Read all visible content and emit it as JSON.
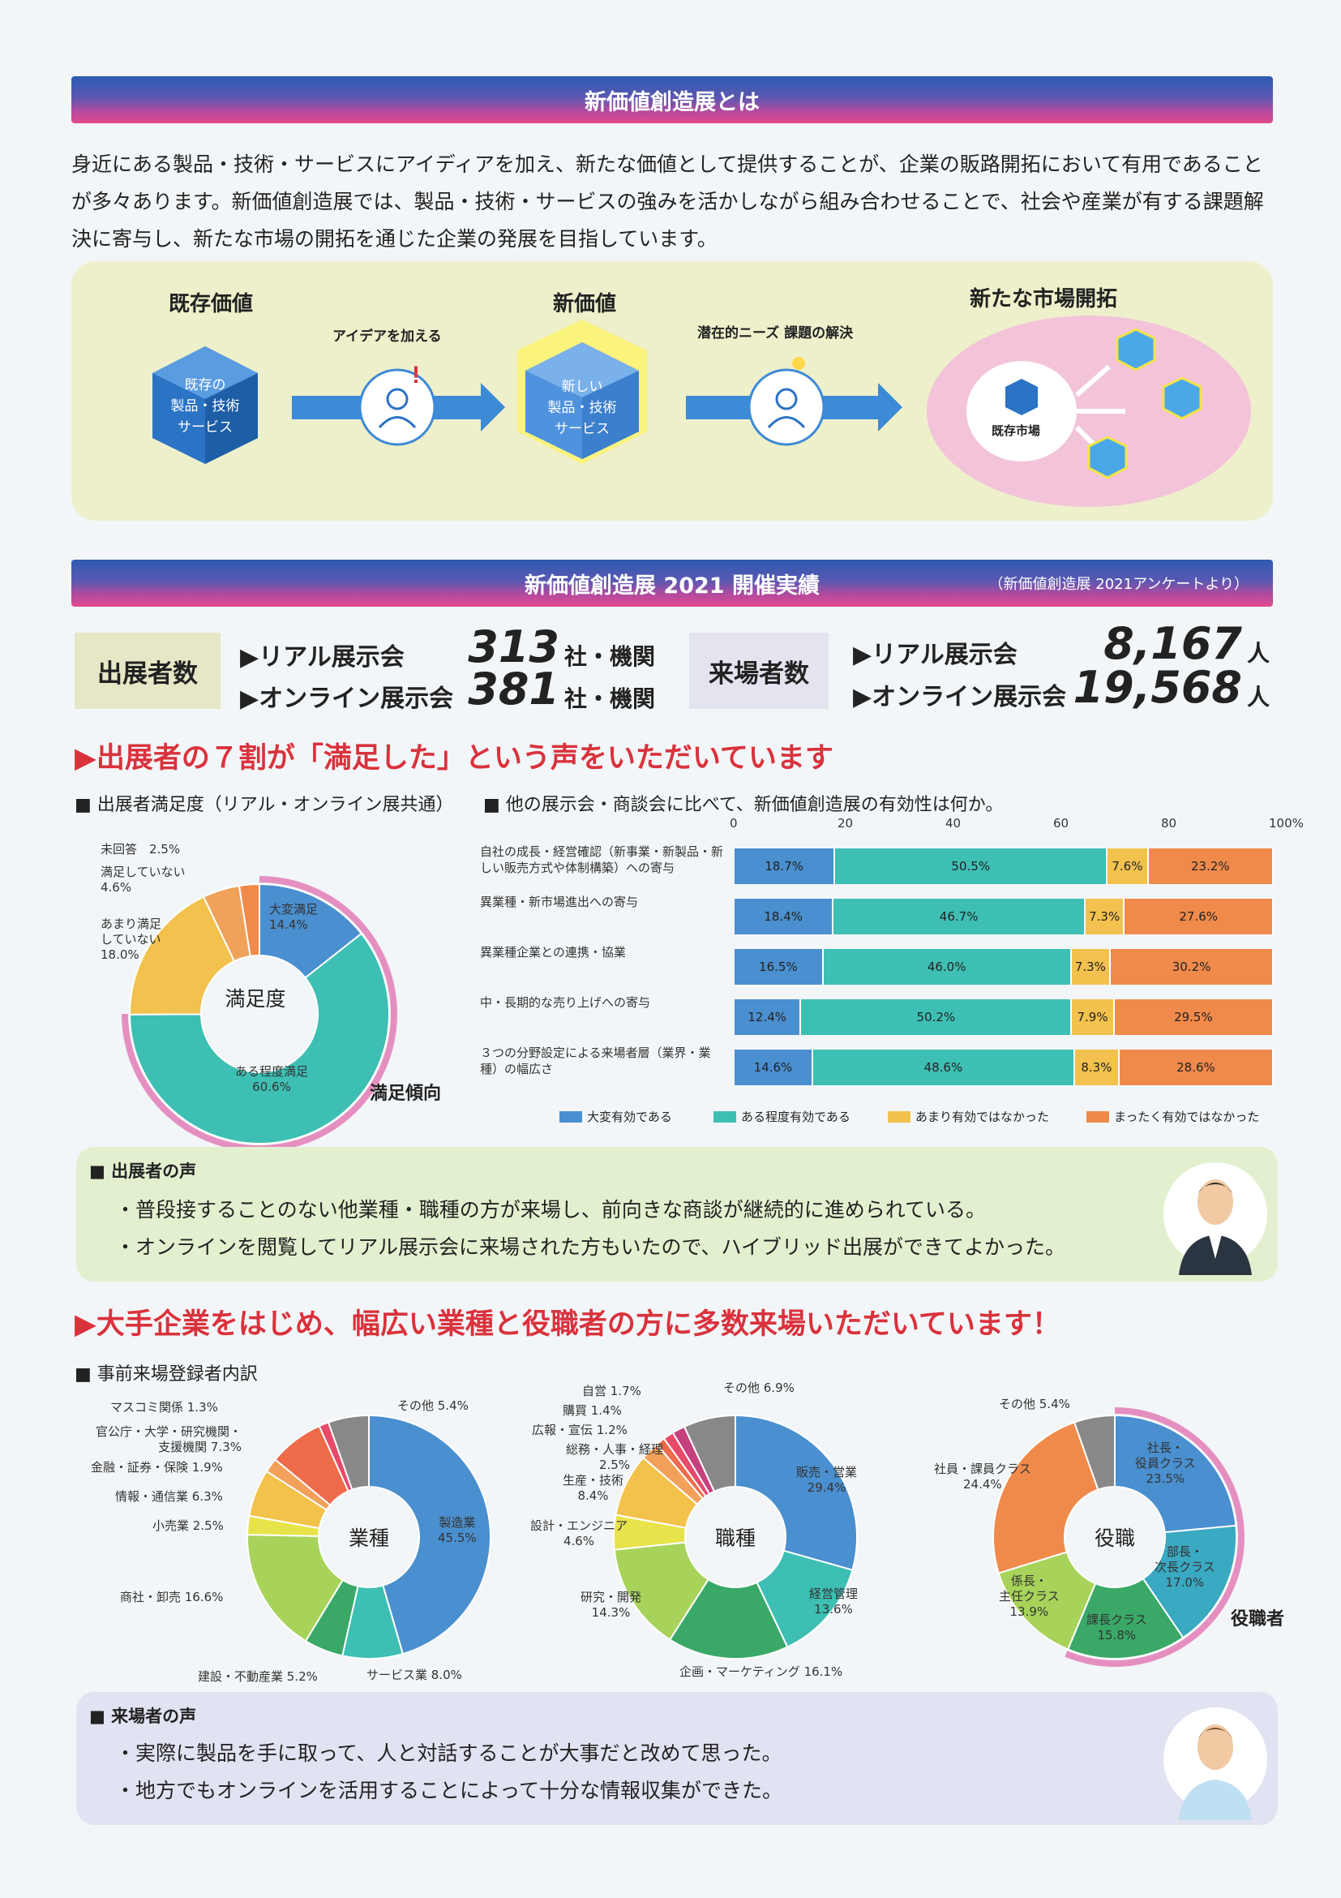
{
  "section1": {
    "title": "新価値創造展とは",
    "intro": "身近にある製品・技術・サービスにアイディアを加え、新たな価値として提供することが、企業の販路開拓において有用であることが多々あります。新価値創造展では、製品・技術・サービスの強みを活かしながら組み合わせることで、社会や産業が有する課題解決に寄与し、新たな市場の開拓を通じた企業の発展を目指しています。",
    "flow": {
      "existing_title": "既存価値",
      "existing_cube": [
        "既存の",
        "製品・技術",
        "サービス"
      ],
      "step1": "アイデアを加える",
      "new_title": "新価値",
      "new_cube": [
        "新しい",
        "製品・技術",
        "サービス"
      ],
      "step2": "潜在的ニーズ 課題の解決",
      "market_title": "新たな市場開拓",
      "market_label": "既存市場"
    }
  },
  "section2": {
    "title": "新価値創造展 2021 開催実績",
    "note": "（新価値創造展 2021アンケートより）",
    "exhibitors": {
      "label": "出展者数",
      "real_label": "▶リアル展示会",
      "real_value": "313",
      "online_label": "▶オンライン展示会",
      "online_value": "381",
      "unit": "社・機関"
    },
    "visitors": {
      "label": "来場者数",
      "real_label": "▶リアル展示会",
      "real_value": "8,167",
      "online_label": "▶オンライン展示会",
      "online_value": "19,568",
      "unit": "人"
    }
  },
  "headline1": "▶出展者の７割が「満足した」という声をいただいています",
  "pie_title": "■ 出展者満足度（リアル・オンライン展共通）",
  "bar_title": "■ 他の展示会・商談会に比べて、新価値創造展の有効性は何か。",
  "satisfaction_center": "満足度",
  "satisfaction_arc_label": "満足傾向",
  "exhibitor_voice": {
    "title": "■ 出展者の声",
    "lines": [
      "・普段接することのない他業種・職種の方が来場し、前向きな商談が継続的に進められている。",
      "・オンラインを閲覧してリアル展示会に来場された方もいたので、ハイブリッド出展ができてよかった。"
    ]
  },
  "headline2": "▶大手企業をはじめ、幅広い業種と役職者の方に多数来場いただいています！",
  "registrants_title": "■ 事前来場登録者内訳",
  "donut_centers": [
    "業種",
    "職種",
    "役職"
  ],
  "role_arc_label": "役職者",
  "visitor_voice": {
    "title": "■ 来場者の声",
    "lines": [
      "・実際に製品を手に取って、人と対話することが大事だと改めて思った。",
      "・地方でもオンラインを活用することによって十分な情報収集ができた。"
    ]
  },
  "colors": {
    "blue": "#4a8fcf",
    "teal": "#3dbfb4",
    "yellow": "#f2c14e",
    "orange": "#f08a4b",
    "pink_arc": "#e58fc1"
  },
  "chart_data": [
    {
      "type": "pie",
      "title": "出展者満足度（リアル・オンライン展共通）",
      "categories": [
        "大変満足",
        "ある程度満足",
        "あまり満足していない",
        "満足していない",
        "未回答"
      ],
      "values": [
        14.4,
        60.6,
        18.0,
        4.6,
        2.5
      ],
      "label_texts": [
        "大変満足\n14.4%",
        "ある程度満足\n60.6%",
        "あまり満足\nしていない\n18.0%",
        "満足していない\n4.6%",
        "未回答　2.5%"
      ],
      "colors": [
        "#4a8fcf",
        "#3dbfb4",
        "#f2c14e",
        "#f0a25a",
        "#f08a4b"
      ]
    },
    {
      "type": "bar",
      "title": "他の展示会・商談会に比べて、新価値創造展の有効性は何か。",
      "orientation": "horizontal-stacked",
      "categories": [
        "自社の成長・経営確認（新事業・新製品・新しい販売方式や体制構築）への寄与",
        "異業種・新市場進出への寄与",
        "異業種企業との連携・協業",
        "中・長期的な売り上げへの寄与",
        "３つの分野設定による来場者層（業界・業種）の幅広さ"
      ],
      "series": [
        {
          "name": "大変有効である",
          "values": [
            18.7,
            18.4,
            16.5,
            12.4,
            14.6
          ]
        },
        {
          "name": "ある程度有効である",
          "values": [
            50.5,
            46.7,
            46.0,
            50.2,
            48.6
          ]
        },
        {
          "name": "あまり有効ではなかった",
          "values": [
            7.6,
            7.3,
            7.3,
            7.9,
            8.3
          ]
        },
        {
          "name": "まったく有効ではなかった",
          "values": [
            23.2,
            27.6,
            30.2,
            29.5,
            28.6
          ]
        }
      ],
      "xlim": [
        0,
        100
      ],
      "ticks": [
        "0",
        "20",
        "40",
        "60",
        "80",
        "100%"
      ]
    },
    {
      "type": "pie",
      "title": "業種",
      "categories": [
        "製造業",
        "サービス業",
        "建設・不動産業",
        "商社・卸売",
        "小売業",
        "情報・通信業",
        "金融・証券・保険",
        "官公庁・大学・研究機関・支援機関",
        "マスコミ関係",
        "その他"
      ],
      "values": [
        45.5,
        8.0,
        5.2,
        16.6,
        2.5,
        6.3,
        1.9,
        7.3,
        1.3,
        5.4
      ],
      "label_texts": [
        "製造業\n45.5%",
        "サービス業 8.0%",
        "建設・不動産業 5.2%",
        "商社・卸売 16.6%",
        "小売業 2.5%",
        "情報・通信業 6.3%",
        "金融・証券・保険 1.9%",
        "官公庁・大学・研究機関・\n支援機関 7.3%",
        "マスコミ関係 1.3%",
        "その他 5.4%"
      ]
    },
    {
      "type": "pie",
      "title": "職種",
      "categories": [
        "販売・営業",
        "経営管理",
        "企画・マーケティング",
        "研究・開発",
        "設計・エンジニア",
        "生産・技術",
        "総務・人事・経理",
        "広報・宣伝",
        "購買",
        "自営",
        "その他"
      ],
      "values": [
        29.4,
        13.6,
        16.1,
        14.3,
        4.6,
        8.4,
        2.5,
        1.2,
        1.4,
        1.7,
        6.9
      ],
      "label_texts": [
        "販売・営業\n29.4%",
        "経営管理\n13.6%",
        "企画・マーケティング 16.1%",
        "研究・開発\n14.3%",
        "設計・エンジニア\n4.6%",
        "生産・技術\n8.4%",
        "総務・人事・経理\n2.5%",
        "広報・宣伝 1.2%",
        "購買 1.4%",
        "自営 1.7%",
        "その他 6.9%"
      ]
    },
    {
      "type": "pie",
      "title": "役職",
      "categories": [
        "社長・役員クラス",
        "部長・次長クラス",
        "課長クラス",
        "係長・主任クラス",
        "社員・課員クラス",
        "その他"
      ],
      "values": [
        23.5,
        17.0,
        15.8,
        13.9,
        24.4,
        5.4
      ],
      "label_texts": [
        "社長・\n役員クラス\n23.5%",
        "部長・\n次長クラス\n17.0%",
        "課長クラス\n15.8%",
        "係長・\n主任クラス\n13.9%",
        "社員・課員クラス\n24.4%",
        "その他 5.4%"
      ]
    }
  ]
}
